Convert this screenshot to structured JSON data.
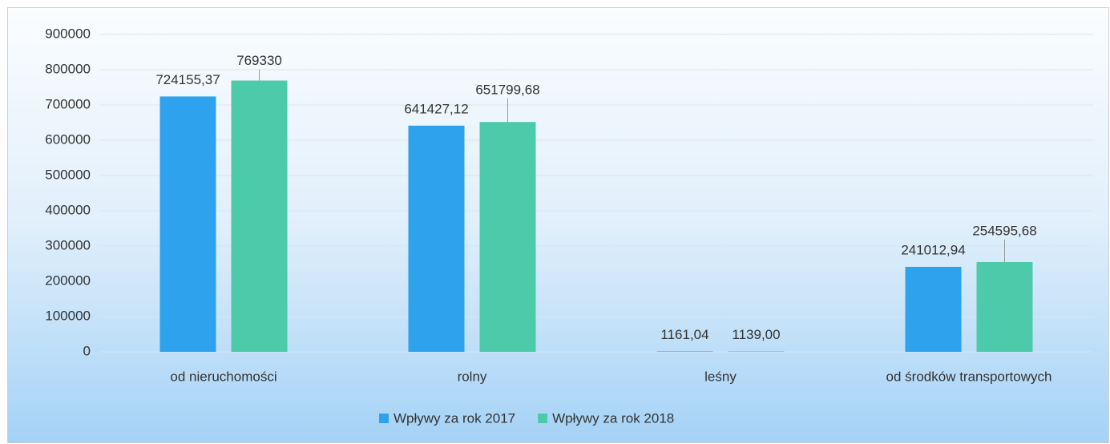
{
  "chart_data": {
    "type": "bar",
    "categories": [
      "od nieruchomości",
      "rolny",
      "leśny",
      "od środków transportowych"
    ],
    "series": [
      {
        "name": "Wpływy za rok 2017",
        "color": "#2ea2ec",
        "values": [
          724155.37,
          641427.12,
          1161.04,
          241012.94
        ],
        "value_labels": [
          "724155,37",
          "641427,12",
          "1161,04",
          "241012,94"
        ]
      },
      {
        "name": "Wpływy za rok 2018",
        "color": "#4ccaaa",
        "values": [
          769330,
          651799.68,
          1139.0,
          254595.68
        ],
        "value_labels": [
          "769330",
          "651799,68",
          "1139,00",
          "254595,68"
        ]
      }
    ],
    "ylim": [
      0,
      900000
    ],
    "yticks": [
      0,
      100000,
      200000,
      300000,
      400000,
      500000,
      600000,
      700000,
      800000,
      900000
    ],
    "grid": true,
    "legend": "bottom"
  }
}
